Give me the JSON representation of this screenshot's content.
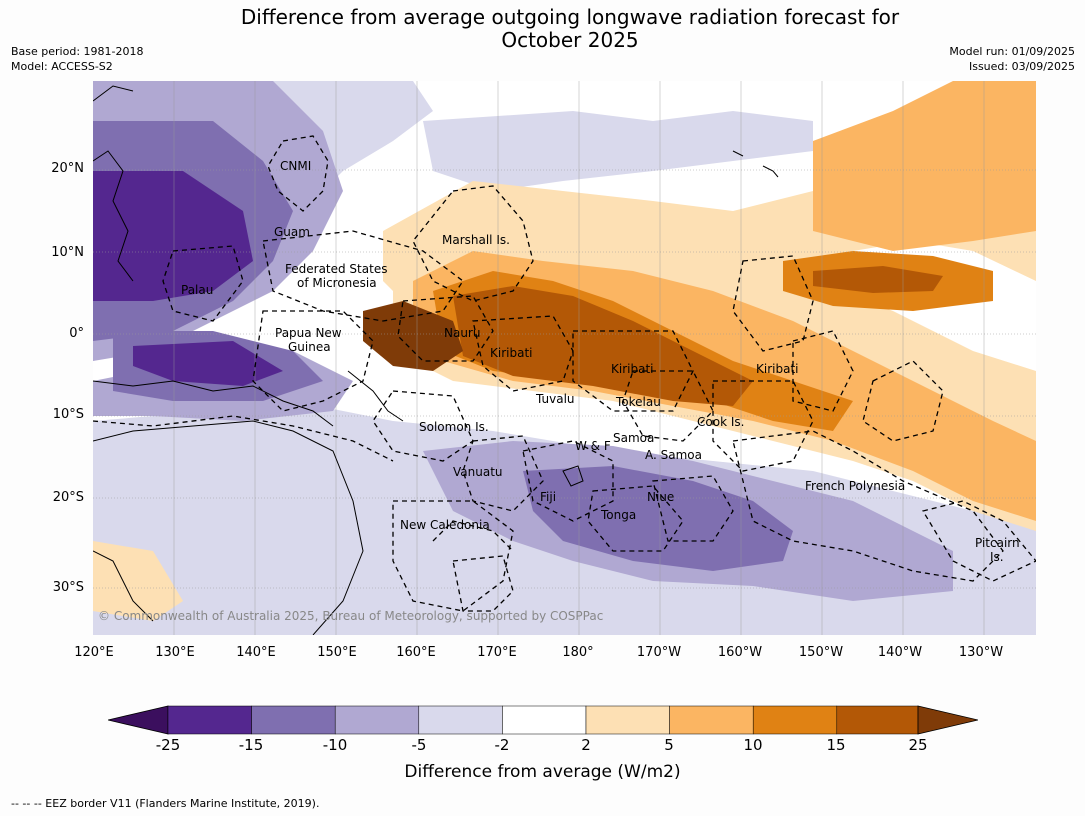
{
  "title": {
    "line1": "Difference from average outgoing longwave radiation forecast for",
    "line2": "October 2025"
  },
  "meta_left": [
    "Base period: 1981-2018",
    "Model: ACCESS-S2"
  ],
  "meta_right": [
    "Model run: 01/09/2025",
    "Issued: 03/09/2025"
  ],
  "map": {
    "lat_labels": [
      "20°N",
      "10°N",
      "0°",
      "10°S",
      "20°S",
      "30°S"
    ],
    "lon_labels": [
      "120°E",
      "130°E",
      "140°E",
      "150°E",
      "160°E",
      "170°E",
      "180°",
      "170°W",
      "160°W",
      "150°W",
      "140°W",
      "130°W"
    ],
    "places": [
      "CNMI",
      "Guam",
      "Marshall Is.",
      "Federated States",
      "of Micronesia",
      "Palau",
      "Papua New",
      "Guinea",
      "Nauru",
      "Kiribati",
      "Kiribati",
      "Kiribati",
      "Tuvalu",
      "Tokelau",
      "Cook Is.",
      "Solomon Is.",
      "Samoa",
      "W & F",
      "A. Samoa",
      "Vanuatu",
      "Fiji",
      "Niue",
      "Tonga",
      "French Polynesia",
      "New Caledonia",
      "Pitcairn",
      "Is."
    ],
    "copyright": "© Commonwealth of Australia 2025, Bureau of Meteorology, supported by COSPPac"
  },
  "colorbar": {
    "ticks": [
      "-25",
      "-15",
      "-10",
      "-5",
      "-2",
      "2",
      "5",
      "10",
      "15",
      "25"
    ],
    "colors": [
      "#3b0f5e",
      "#54278f",
      "#7f6fb0",
      "#b0a8d2",
      "#d9d9ec",
      "#ffffff",
      "#fde0b4",
      "#fbb562",
      "#e08214",
      "#b35806",
      "#7f3b08"
    ],
    "label": "Difference from average (W/m2)"
  },
  "footnote": "--  --  -- EEZ border V11 (Flanders Marine Institute, 2019)."
}
